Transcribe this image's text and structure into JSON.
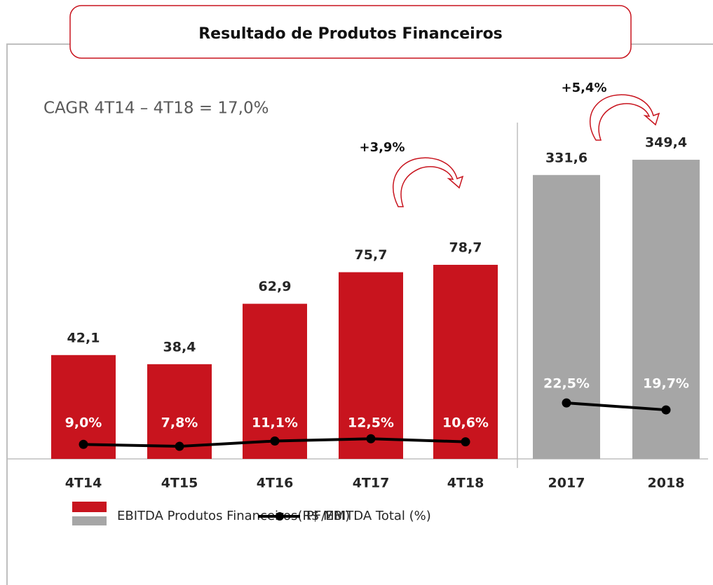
{
  "title": "Resultado de Produtos Financeiros",
  "chart_data": [
    {
      "type": "bar",
      "annotations": [
        "CAGR 4T14 – 4T18 = 17,0%",
        "+3,9%"
      ],
      "categories": [
        "4T14",
        "4T15",
        "4T16",
        "4T17",
        "4T18"
      ],
      "series": [
        {
          "name": "EBITDA Produtos Financeiros(R$ MM)",
          "color": "#c8141e",
          "values": [
            42.1,
            38.4,
            62.9,
            75.7,
            78.7
          ],
          "value_labels": [
            "42,1",
            "38,4",
            "62,9",
            "75,7",
            "78,7"
          ]
        },
        {
          "name": "PF/EBITDA Total (%)",
          "type": "line",
          "color": "#000000",
          "values": [
            9.0,
            7.8,
            11.1,
            12.5,
            10.6
          ],
          "value_labels": [
            "9,0%",
            "7,8%",
            "11,1%",
            "12,5%",
            "10,6%"
          ]
        }
      ]
    },
    {
      "type": "bar",
      "annotations": [
        "+5,4%"
      ],
      "categories": [
        "2017",
        "2018"
      ],
      "series": [
        {
          "color": "#a6a6a6",
          "values": [
            331.6,
            349.4
          ],
          "value_labels": [
            "331,6",
            "349,4"
          ]
        },
        {
          "type": "line",
          "color": "#000000",
          "values": [
            22.5,
            19.7
          ],
          "value_labels": [
            "22,5%",
            "19,7%"
          ]
        }
      ]
    }
  ]
}
